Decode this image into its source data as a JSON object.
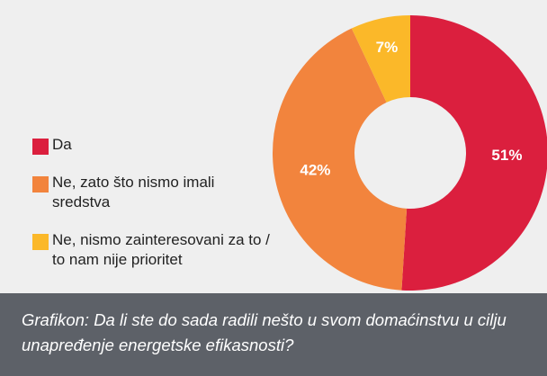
{
  "chart_data": {
    "type": "donut",
    "categories": [
      "Da",
      "Ne, zato što nismo imali sredstva",
      "Ne, nismo zainteresovani za to / to nam nije prioritet"
    ],
    "values": [
      51,
      42,
      7
    ],
    "value_labels": [
      "51%",
      "42%",
      "7%"
    ],
    "colors": [
      "#db1f3e",
      "#f2843d",
      "#fbb829"
    ],
    "caption": "Grafikon: Da li ste do sada radili nešto u svom domaćinstvu u cilju unapređenje energetske efikasnosti?"
  }
}
